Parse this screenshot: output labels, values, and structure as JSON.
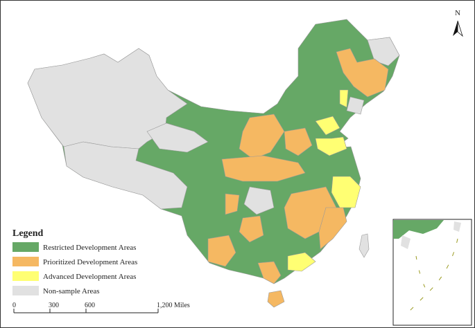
{
  "north_label": "N",
  "legend": {
    "title": "Legend",
    "items": [
      {
        "label": "Restricted Development Areas",
        "color": "#66a866"
      },
      {
        "label": "Prioritized Development Areas",
        "color": "#f5b862"
      },
      {
        "label": "Advanced Development Areas",
        "color": "#ffff73"
      },
      {
        "label": "Non-sample Areas",
        "color": "#e1e1e1"
      }
    ]
  },
  "scale_bar": {
    "labels": [
      "0",
      "300",
      "600",
      "1,200 Miles"
    ]
  }
}
